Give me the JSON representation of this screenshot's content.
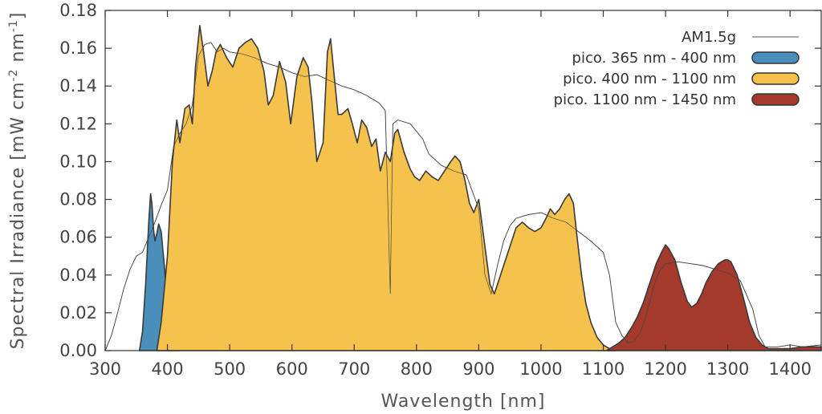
{
  "chart_data": {
    "type": "area",
    "title": "",
    "xlabel": "Wavelength [nm]",
    "ylabel_main": "Spectral Irradiance [mW cm",
    "ylabel_sup1": "-2",
    "ylabel_mid": " nm",
    "ylabel_sup2": "-1",
    "ylabel_end": "]",
    "xlim": [
      300,
      1450
    ],
    "ylim": [
      0.0,
      0.18
    ],
    "xticks": [
      300,
      400,
      500,
      600,
      700,
      800,
      900,
      1000,
      1100,
      1200,
      1300,
      1400
    ],
    "xtick_labels": [
      "300",
      "400",
      "500",
      "600",
      "700",
      "800",
      "900",
      "1000",
      "1100",
      "1200",
      "1300",
      "1400"
    ],
    "yticks": [
      0.0,
      0.02,
      0.04,
      0.06,
      0.08,
      0.1,
      0.12,
      0.14,
      0.16,
      0.18
    ],
    "ytick_labels": [
      "0.00",
      "0.02",
      "0.04",
      "0.06",
      "0.08",
      "0.10",
      "0.12",
      "0.14",
      "0.16",
      "0.18"
    ],
    "legend_position": "top-right",
    "series": [
      {
        "name": "AM1.5g",
        "style": "line",
        "color": "#555555",
        "x": [
          300,
          310,
          320,
          330,
          340,
          350,
          360,
          370,
          380,
          390,
          400,
          410,
          420,
          430,
          440,
          450,
          460,
          470,
          480,
          490,
          500,
          520,
          540,
          560,
          580,
          600,
          620,
          640,
          660,
          680,
          700,
          720,
          740,
          750,
          758,
          762,
          770,
          790,
          810,
          820,
          840,
          860,
          880,
          900,
          910,
          920,
          930,
          940,
          950,
          960,
          980,
          1000,
          1020,
          1040,
          1060,
          1080,
          1100,
          1110,
          1120,
          1130,
          1140,
          1150,
          1160,
          1170,
          1180,
          1190,
          1200,
          1220,
          1240,
          1260,
          1280,
          1300,
          1320,
          1340,
          1350,
          1360,
          1380,
          1400,
          1420,
          1450
        ],
        "y": [
          0.0,
          0.008,
          0.02,
          0.033,
          0.043,
          0.05,
          0.052,
          0.06,
          0.068,
          0.077,
          0.085,
          0.108,
          0.115,
          0.12,
          0.13,
          0.156,
          0.162,
          0.163,
          0.158,
          0.16,
          0.158,
          0.157,
          0.155,
          0.152,
          0.15,
          0.147,
          0.145,
          0.146,
          0.143,
          0.14,
          0.138,
          0.135,
          0.131,
          0.127,
          0.03,
          0.12,
          0.122,
          0.12,
          0.112,
          0.104,
          0.098,
          0.095,
          0.093,
          0.075,
          0.04,
          0.03,
          0.045,
          0.058,
          0.066,
          0.07,
          0.072,
          0.073,
          0.07,
          0.068,
          0.063,
          0.058,
          0.052,
          0.04,
          0.015,
          0.008,
          0.004,
          0.005,
          0.01,
          0.02,
          0.033,
          0.042,
          0.046,
          0.047,
          0.046,
          0.045,
          0.043,
          0.041,
          0.037,
          0.022,
          0.008,
          0.002,
          0.002,
          0.003,
          0.002,
          0.003
        ]
      },
      {
        "name": "pico. 365 nm - 400 nm",
        "style": "fill",
        "color": "#4a8fbb",
        "x": [
          355,
          360,
          365,
          370,
          373,
          375,
          378,
          380,
          383,
          386,
          390,
          395,
          400,
          405,
          410,
          415,
          420
        ],
        "y": [
          0.0,
          0.01,
          0.035,
          0.068,
          0.083,
          0.078,
          0.063,
          0.058,
          0.062,
          0.067,
          0.063,
          0.045,
          0.025,
          0.01,
          0.004,
          0.001,
          0.0
        ]
      },
      {
        "name": "pico. 400 nm - 1100 nm",
        "style": "fill",
        "color": "#f5c24d",
        "x": [
          383,
          390,
          400,
          408,
          415,
          420,
          428,
          435,
          440,
          445,
          452,
          458,
          465,
          472,
          478,
          485,
          495,
          505,
          515,
          525,
          535,
          545,
          555,
          562,
          570,
          580,
          590,
          598,
          608,
          618,
          626,
          632,
          640,
          650,
          657,
          662,
          668,
          674,
          680,
          690,
          697,
          705,
          712,
          720,
          728,
          735,
          742,
          750,
          758,
          765,
          770,
          780,
          790,
          797,
          805,
          815,
          825,
          835,
          845,
          855,
          862,
          870,
          878,
          885,
          892,
          900,
          910,
          918,
          925,
          930,
          940,
          950,
          960,
          970,
          980,
          990,
          1000,
          1008,
          1015,
          1022,
          1030,
          1038,
          1045,
          1052,
          1058,
          1065,
          1072,
          1080,
          1090,
          1100,
          1110,
          1118
        ],
        "y": [
          0.0,
          0.015,
          0.05,
          0.1,
          0.122,
          0.11,
          0.128,
          0.13,
          0.12,
          0.15,
          0.172,
          0.158,
          0.14,
          0.148,
          0.158,
          0.162,
          0.155,
          0.15,
          0.16,
          0.163,
          0.165,
          0.16,
          0.148,
          0.13,
          0.135,
          0.153,
          0.142,
          0.12,
          0.145,
          0.155,
          0.15,
          0.132,
          0.1,
          0.11,
          0.158,
          0.165,
          0.145,
          0.125,
          0.125,
          0.128,
          0.12,
          0.11,
          0.122,
          0.118,
          0.108,
          0.112,
          0.095,
          0.105,
          0.1,
          0.115,
          0.117,
          0.105,
          0.096,
          0.092,
          0.09,
          0.095,
          0.092,
          0.09,
          0.095,
          0.1,
          0.103,
          0.1,
          0.09,
          0.078,
          0.073,
          0.08,
          0.055,
          0.035,
          0.03,
          0.035,
          0.045,
          0.055,
          0.065,
          0.068,
          0.065,
          0.063,
          0.065,
          0.07,
          0.075,
          0.072,
          0.075,
          0.08,
          0.083,
          0.078,
          0.06,
          0.04,
          0.025,
          0.015,
          0.007,
          0.003,
          0.001,
          0.0
        ]
      },
      {
        "name": "pico. 1100 nm - 1450 nm",
        "style": "fill",
        "color": "#a33a2c",
        "x": [
          1105,
          1115,
          1125,
          1135,
          1145,
          1155,
          1165,
          1175,
          1185,
          1195,
          1200,
          1205,
          1215,
          1225,
          1235,
          1242,
          1250,
          1258,
          1265,
          1275,
          1285,
          1295,
          1300,
          1305,
          1315,
          1325,
          1335,
          1345,
          1355,
          1365,
          1380,
          1400,
          1420,
          1450
        ],
        "y": [
          0.0,
          0.002,
          0.004,
          0.007,
          0.012,
          0.018,
          0.026,
          0.036,
          0.046,
          0.053,
          0.056,
          0.054,
          0.048,
          0.036,
          0.026,
          0.023,
          0.025,
          0.03,
          0.036,
          0.042,
          0.046,
          0.048,
          0.048,
          0.047,
          0.04,
          0.028,
          0.015,
          0.007,
          0.003,
          0.001,
          0.001,
          0.001,
          0.002,
          0.002
        ]
      }
    ]
  }
}
